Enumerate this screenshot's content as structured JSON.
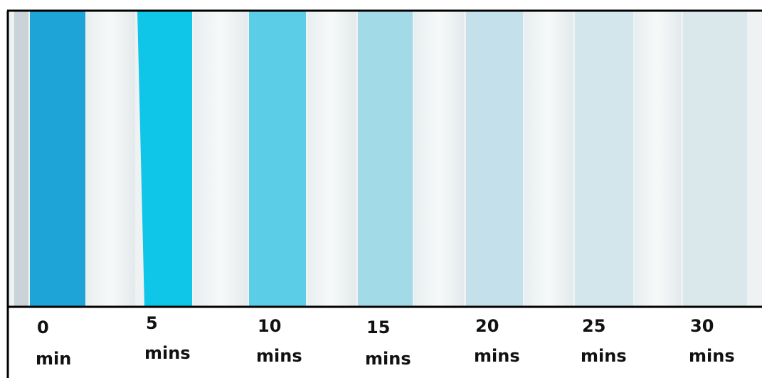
{
  "samples": [
    {
      "time": "0",
      "unit": "min"
    },
    {
      "time": "5",
      "unit": "mins"
    },
    {
      "time": "10",
      "unit": "mins"
    },
    {
      "time": "15",
      "unit": "mins"
    },
    {
      "time": "20",
      "unit": "mins"
    },
    {
      "time": "25",
      "unit": "mins"
    },
    {
      "time": "30",
      "unit": "mins"
    }
  ]
}
